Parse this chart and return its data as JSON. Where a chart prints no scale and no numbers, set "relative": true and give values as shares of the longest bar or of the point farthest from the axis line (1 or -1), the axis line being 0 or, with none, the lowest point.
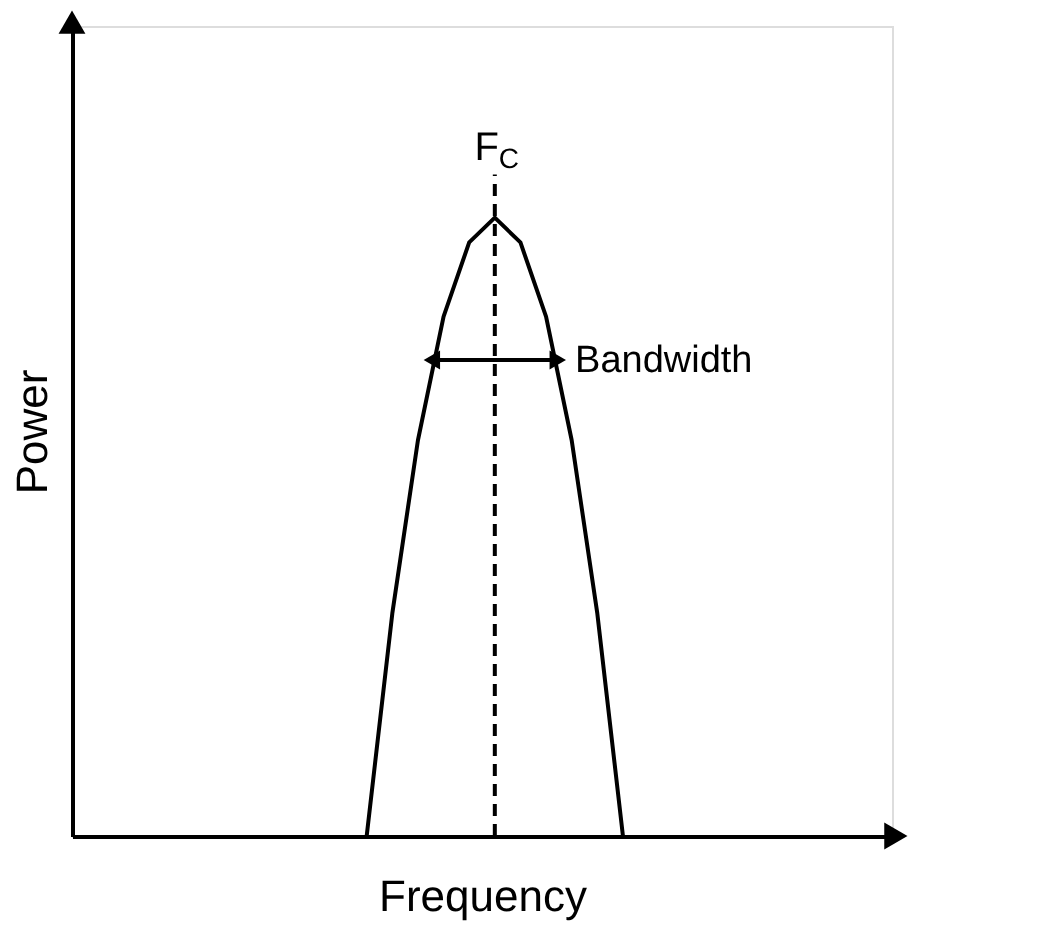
{
  "chart_data": {
    "type": "line",
    "relative": true,
    "xlabel": "Frequency",
    "ylabel": "Power",
    "legend": false,
    "marker": "none",
    "line_style": "solid",
    "categories": [
      null,
      null,
      null,
      null,
      null,
      null,
      null,
      null,
      null,
      null,
      null,
      null,
      null,
      null,
      null,
      null,
      null,
      null,
      null,
      null,
      null,
      null,
      null,
      null,
      null,
      null,
      null,
      null,
      null,
      null,
      null,
      null
    ],
    "series": [
      {
        "color": "#000000",
        "values": [
          null,
          null,
          null,
          null,
          null,
          null,
          null,
          null,
          null,
          null,
          null,
          0,
          0.36,
          0.64,
          0.84,
          0.96,
          1,
          0.96,
          0.84,
          0.64,
          0.36,
          0,
          null,
          null,
          null,
          null,
          null,
          null,
          null,
          null,
          null,
          null
        ]
      }
    ],
    "annotations": [
      "F$_{C}$",
      "Bandwidth"
    ]
  }
}
